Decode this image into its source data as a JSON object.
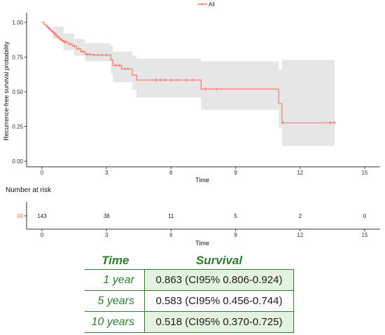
{
  "chart_data": [
    {
      "type": "line",
      "subtype": "kaplan-meier",
      "title": "",
      "xlabel": "Time",
      "ylabel": "Recurrence-free survival probability",
      "xlim": [
        0,
        15
      ],
      "ylim": [
        0,
        1
      ],
      "xticks": [
        0,
        3,
        6,
        9,
        12,
        15
      ],
      "yticks": [
        "0.00",
        "0.25",
        "0.50",
        "0.75",
        "1.00"
      ],
      "grid": false,
      "legend": {
        "placement": "top",
        "entries": [
          "All"
        ]
      },
      "series": [
        {
          "name": "All",
          "color": "#f8766d",
          "steps": [
            [
              0,
              1.0
            ],
            [
              0.1,
              0.985
            ],
            [
              0.2,
              0.97
            ],
            [
              0.3,
              0.955
            ],
            [
              0.4,
              0.94
            ],
            [
              0.5,
              0.925
            ],
            [
              0.6,
              0.91
            ],
            [
              0.7,
              0.895
            ],
            [
              0.8,
              0.88
            ],
            [
              0.9,
              0.87
            ],
            [
              1.0,
              0.86
            ],
            [
              1.2,
              0.845
            ],
            [
              1.4,
              0.83
            ],
            [
              1.6,
              0.81
            ],
            [
              1.8,
              0.79
            ],
            [
              2.0,
              0.77
            ],
            [
              2.3,
              0.765
            ],
            [
              3.2,
              0.73
            ],
            [
              3.3,
              0.69
            ],
            [
              3.7,
              0.665
            ],
            [
              4.2,
              0.62
            ],
            [
              4.4,
              0.585
            ],
            [
              7.4,
              0.52
            ],
            [
              11.0,
              0.415
            ],
            [
              11.15,
              0.277
            ],
            [
              13.6,
              0.277
            ]
          ],
          "ci_lower": [
            [
              0,
              1.0
            ],
            [
              0.5,
              0.88
            ],
            [
              1.0,
              0.8
            ],
            [
              1.5,
              0.76
            ],
            [
              2.0,
              0.72
            ],
            [
              3.2,
              0.63
            ],
            [
              3.3,
              0.57
            ],
            [
              4.2,
              0.515
            ],
            [
              4.4,
              0.46
            ],
            [
              7.4,
              0.37
            ],
            [
              11.0,
              0.24
            ],
            [
              11.15,
              0.11
            ],
            [
              13.6,
              0.11
            ]
          ],
          "ci_upper": [
            [
              0,
              1.0
            ],
            [
              0.5,
              0.97
            ],
            [
              1.0,
              0.92
            ],
            [
              1.5,
              0.88
            ],
            [
              2.0,
              0.85
            ],
            [
              3.2,
              0.83
            ],
            [
              3.3,
              0.79
            ],
            [
              4.2,
              0.76
            ],
            [
              4.4,
              0.74
            ],
            [
              7.4,
              0.72
            ],
            [
              11.0,
              0.66
            ],
            [
              11.15,
              0.73
            ],
            [
              13.6,
              0.73
            ]
          ],
          "censor_times": [
            0.25,
            0.35,
            0.45,
            0.55,
            0.65,
            0.75,
            0.85,
            0.95,
            1.05,
            1.1,
            1.3,
            1.5,
            1.7,
            1.9,
            2.1,
            2.2,
            2.4,
            2.6,
            2.8,
            3.0,
            3.45,
            3.6,
            3.85,
            4.0,
            5.3,
            5.5,
            5.7,
            6.0,
            6.3,
            6.7,
            7.0,
            7.6,
            8.1,
            11.2,
            13.4,
            13.6
          ]
        }
      ]
    },
    {
      "type": "table",
      "title": "Number at risk",
      "xlabel": "Time",
      "row_label": "All",
      "xticks": [
        0,
        3,
        6,
        9,
        12,
        15
      ],
      "times": [
        0,
        3,
        6,
        9,
        12,
        15
      ],
      "values": [
        "143",
        "38",
        "11",
        "5",
        "2",
        "0"
      ]
    }
  ],
  "summary_table": {
    "headers": [
      "Time",
      "Survival"
    ],
    "rows": [
      {
        "time": "1 year",
        "survival": "0.863 (CI95% 0.806-0.924)"
      },
      {
        "time": "5 years",
        "survival": "0.583 (CI95% 0.456-0.744)"
      },
      {
        "time": "10 years",
        "survival": "0.518 (CI95% 0.370-0.725)"
      }
    ]
  }
}
